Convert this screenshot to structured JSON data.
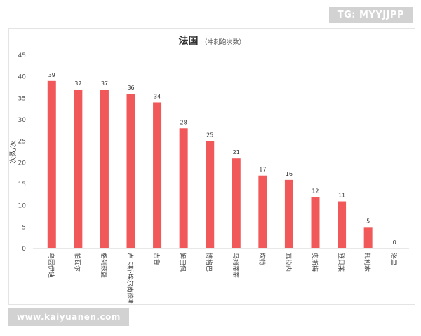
{
  "watermark_top": "TG: MYYJJPP",
  "watermark_bottom": "www.kaiyuanen.com",
  "chart_data": {
    "type": "bar",
    "title": "法国",
    "subtitle": "（冲刺跑次数）",
    "xlabel": "",
    "ylabel": "次数/次",
    "ylim": [
      0,
      45
    ],
    "yticks": [
      0,
      5,
      10,
      15,
      20,
      25,
      30,
      35,
      40,
      45
    ],
    "grid": false,
    "legend": "none",
    "bar_color": "#f0585a",
    "categories": [
      "乌因伊迪",
      "帕瓦尔",
      "格列兹曼",
      "卢卡斯·埃尔南德斯",
      "吉鲁",
      "姆巴佩",
      "博格巴",
      "乌姆蒂蒂",
      "坎特",
      "瓦拉内",
      "奥斯梅",
      "登贝莱",
      "托利索",
      "洛里"
    ],
    "values": [
      39,
      37,
      37,
      36,
      34,
      28,
      25,
      21,
      17,
      16,
      12,
      11,
      5,
      0
    ]
  }
}
